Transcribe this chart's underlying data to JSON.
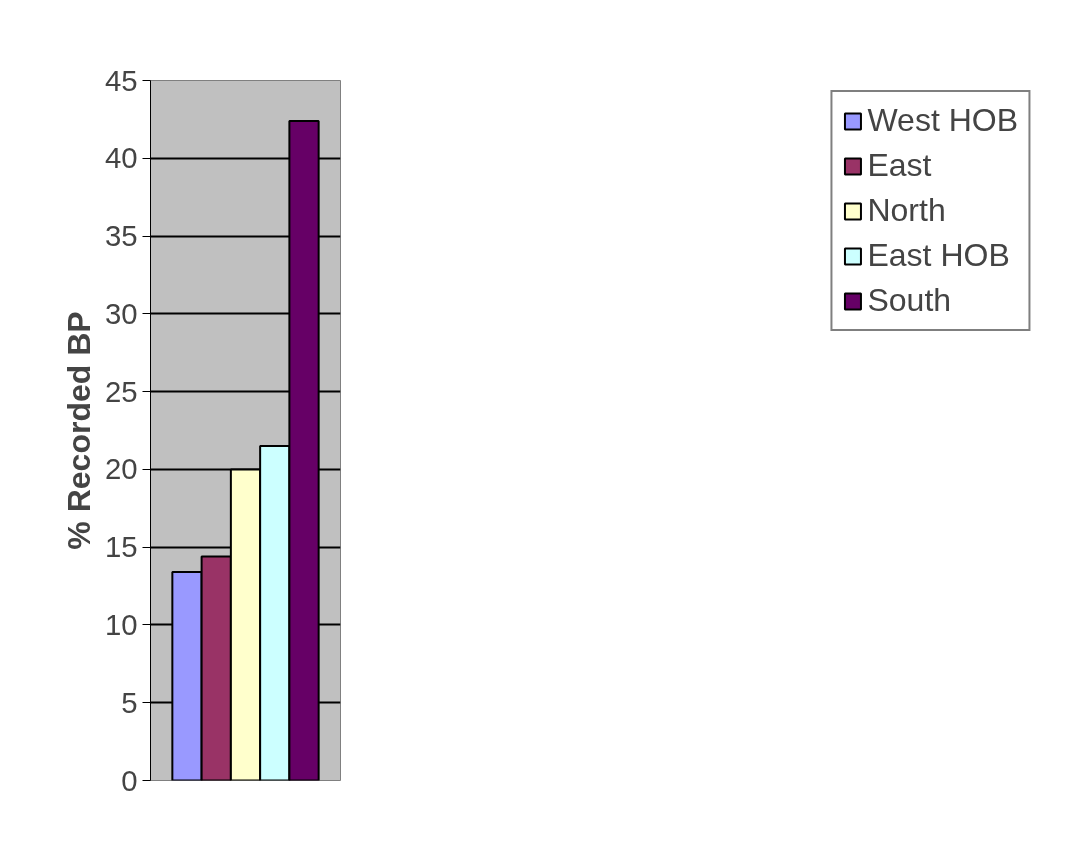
{
  "chart_data": {
    "type": "bar",
    "ylabel": "% Recorded BP",
    "categories": [
      null
    ],
    "series": [
      {
        "name": "West HOB",
        "color": "#9999ff",
        "values": [
          13.4
        ]
      },
      {
        "name": "East",
        "color": "#993366",
        "values": [
          14.4
        ]
      },
      {
        "name": "North",
        "color": "#ffffcc",
        "values": [
          20.0
        ]
      },
      {
        "name": "East HOB",
        "color": "#ccffff",
        "values": [
          21.5
        ]
      },
      {
        "name": "South",
        "color": "#660066",
        "values": [
          42.4
        ]
      }
    ],
    "ylim": [
      0,
      45
    ],
    "yticks": [
      0,
      5,
      10,
      15,
      20,
      25,
      30,
      35,
      40,
      45
    ],
    "grid": "y",
    "legend": "right"
  }
}
